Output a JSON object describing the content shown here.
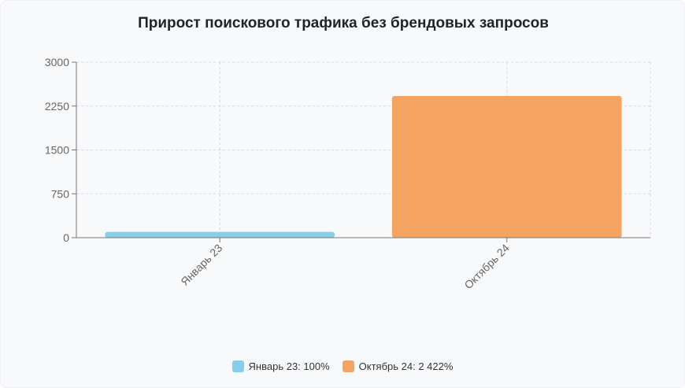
{
  "chart_data": {
    "type": "bar",
    "title": "Прирост поискового трафика без брендовых запросов",
    "categories": [
      "Январь 23",
      "Октябрь 24"
    ],
    "values": [
      100,
      2422
    ],
    "colors": [
      "#87ceeb",
      "#f4a460"
    ],
    "ylim": [
      0,
      3000
    ],
    "yticks": [
      0,
      750,
      1500,
      2250,
      3000
    ],
    "ytick_labels": [
      "0",
      "750",
      "1500",
      "2250",
      "3000"
    ],
    "grid": true,
    "legend_position": "bottom-center",
    "legend": [
      "Январь 23: 100%",
      "Октябрь 24: 2 422%"
    ]
  }
}
